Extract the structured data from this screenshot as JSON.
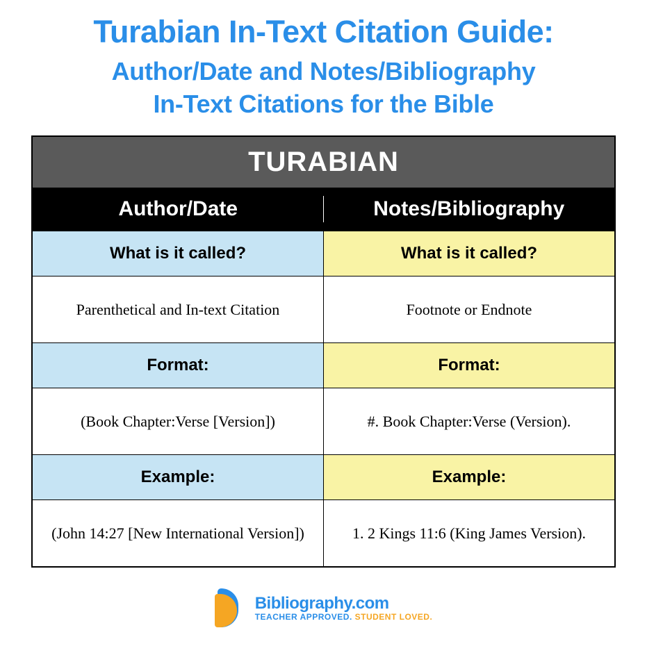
{
  "title": "Turabian In-Text Citation Guide:",
  "subtitle": "Author/Date and Notes/Bibliography\nIn-Text Citations for the Bible",
  "banner": "TURABIAN",
  "columns": {
    "left": "Author/Date",
    "right": "Notes/Bibliography"
  },
  "sections": {
    "what": {
      "label": "What is it called?",
      "left": "Parenthetical and In-text Citation",
      "right": "Footnote or Endnote"
    },
    "format": {
      "label": "Format:",
      "left": "(Book Chapter:Verse [Version])",
      "right": "#. Book Chapter:Verse (Version)."
    },
    "example": {
      "label": "Example:",
      "left": "(John 14:27 [New International Version])",
      "right": "1. 2 Kings 11:6 (King James Version)."
    }
  },
  "footer": {
    "brand": "Bibliography.com",
    "tagline1": "TEACHER APPROVED.",
    "tagline2": "STUDENT LOVED."
  },
  "colors": {
    "accent": "#2a8ee8",
    "orange": "#f5a623",
    "blue_bg": "#c6e4f4",
    "yellow_bg": "#f9f3a5",
    "banner_bg": "#5a5a5a"
  }
}
